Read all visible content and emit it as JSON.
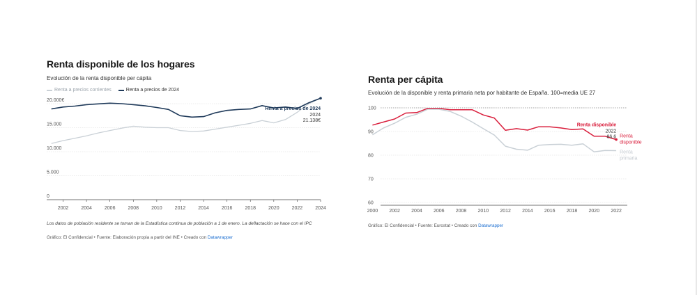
{
  "colors": {
    "navy": "#1f3a5a",
    "light_gray": "#c9d0d6",
    "red": "#d91e3c",
    "grid": "#dcdcdc",
    "link": "#1d6fd1"
  },
  "left": {
    "title": "Renta disponible de los hogares",
    "subtitle": "Evolución de la renta disponible per cápita",
    "legend": [
      "Renta a precios corrientes",
      "Renta a precios de 2024"
    ],
    "note": "Los datos de población residente se toman de la Estadística continua de población a 1 de enero. La deflactación se hace con el IPC",
    "credit_text": "Gráfico: El Confidencial • Fuente: Elaboración propia a partir del INE • Creado con ",
    "credit_link": "Datawrapper",
    "annotation": {
      "name": "Renta a precios de 2024",
      "year": "2024",
      "value": "21.138€"
    }
  },
  "right": {
    "title": "Renta per cápita",
    "subtitle": "Evolución de la disponible y renta primaria neta por habitante de España. 100=media UE 27",
    "credit_text": "Gráfico: El Confidencial • Fuente: Eurostat • Creado con ",
    "credit_link": "Datawrapper",
    "annotation_red": "Renta disponible",
    "annotation_year": "2022",
    "annotation_value": "86,6",
    "end_label_red": [
      "Renta",
      "disponible"
    ],
    "end_label_gray": [
      "Renta",
      "primaria"
    ]
  },
  "chart_data": [
    {
      "type": "line",
      "title": "Renta disponible de los hogares",
      "subtitle": "Evolución de la renta disponible per cápita",
      "x": [
        2001,
        2002,
        2003,
        2004,
        2005,
        2006,
        2007,
        2008,
        2009,
        2010,
        2011,
        2012,
        2013,
        2014,
        2015,
        2016,
        2017,
        2018,
        2019,
        2020,
        2021,
        2022,
        2023,
        2024
      ],
      "series": [
        {
          "name": "Renta a precios corrientes",
          "values": [
            11700,
            12300,
            12800,
            13300,
            13900,
            14400,
            14900,
            15300,
            15100,
            15000,
            15000,
            14400,
            14200,
            14300,
            14700,
            15100,
            15500,
            15900,
            16500,
            16000,
            16700,
            18200,
            20000,
            21138
          ]
        },
        {
          "name": "Renta a precios de 2024",
          "values": [
            18900,
            19300,
            19500,
            19800,
            19950,
            20100,
            20000,
            19800,
            19550,
            19200,
            18800,
            17500,
            17200,
            17300,
            18100,
            18600,
            18800,
            18900,
            19600,
            19100,
            19300,
            19000,
            20200,
            21138
          ]
        }
      ],
      "xticks": [
        "2002",
        "2004",
        "2006",
        "2008",
        "2010",
        "2012",
        "2014",
        "2016",
        "2018",
        "2020",
        "2022",
        "2024"
      ],
      "yticks": [
        "0",
        "5.000",
        "10.000",
        "15.000",
        "20.000€"
      ],
      "ylim": [
        0,
        20000
      ],
      "xlabel": "",
      "ylabel": ""
    },
    {
      "type": "line",
      "title": "Renta per cápita",
      "subtitle": "Evolución de la disponible y renta primaria neta por habitante de España. 100=media UE 27",
      "x": [
        2000,
        2001,
        2002,
        2003,
        2004,
        2005,
        2006,
        2007,
        2008,
        2009,
        2010,
        2011,
        2012,
        2013,
        2014,
        2015,
        2016,
        2017,
        2018,
        2019,
        2020,
        2021,
        2022
      ],
      "series": [
        {
          "name": "Renta disponible",
          "values": [
            92.7,
            94,
            95.3,
            97.8,
            98,
            99.8,
            99.8,
            99.2,
            99.2,
            99.2,
            97,
            95.7,
            90.5,
            91.2,
            90.6,
            92,
            92,
            91.5,
            90.8,
            91.1,
            88,
            88,
            86.6
          ]
        },
        {
          "name": "Renta primaria",
          "values": [
            88.6,
            91.5,
            93.5,
            96,
            97.3,
            99.4,
            99.4,
            98.5,
            96.5,
            94,
            91.2,
            88.5,
            83.8,
            82.5,
            82.1,
            84.2,
            84.5,
            84.6,
            84.2,
            84.8,
            81.4,
            82,
            81.9
          ]
        }
      ],
      "xticks": [
        "2000",
        "2002",
        "2004",
        "2006",
        "2008",
        "2010",
        "2012",
        "2014",
        "2016",
        "2018",
        "2020",
        "2022"
      ],
      "yticks": [
        "60",
        "70",
        "80",
        "90",
        "100"
      ],
      "ylim": [
        60,
        100
      ],
      "xlabel": "",
      "ylabel": ""
    }
  ]
}
